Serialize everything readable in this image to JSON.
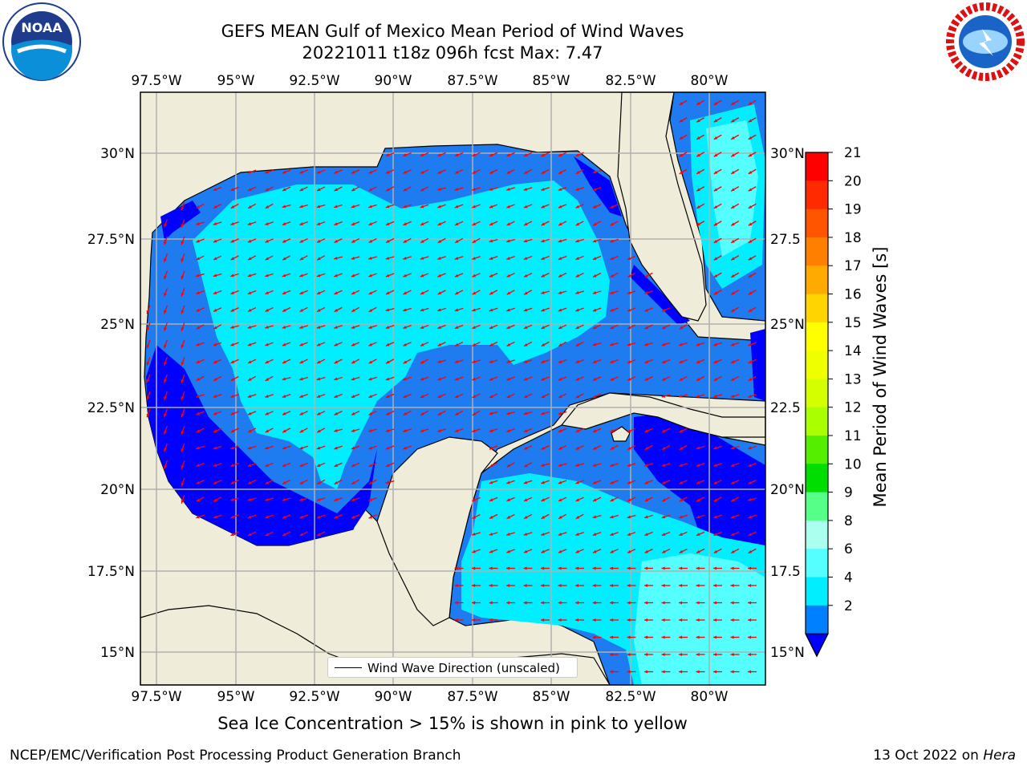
{
  "title_line1": "GEFS MEAN Gulf of Mexico Mean Period of Wind Waves",
  "title_line2": "20221011 t18z 096h fcst   Max: 7.47",
  "logos": {
    "left_logo": "noaa-logo",
    "left_text": "NOAA",
    "right_logo": "nws-logo"
  },
  "axes": {
    "lon_labels": [
      "97.5°W",
      "95°W",
      "92.5°W",
      "90°W",
      "87.5°W",
      "85°W",
      "82.5°W",
      "80°W"
    ],
    "lat_labels_left": [
      "30°N",
      "27.5°N",
      "25°N",
      "22.5°N",
      "20°N",
      "17.5°N",
      "15°N"
    ],
    "lat_labels_right": [
      "30°N",
      "27.5",
      "25°N",
      "22.5",
      "20°N",
      "17.5",
      "15°N"
    ]
  },
  "colorbar": {
    "title": "Mean Period of Wind Waves [s]",
    "ticks": [
      "21",
      "20",
      "19",
      "18",
      "17",
      "16",
      "15",
      "14",
      "13",
      "12",
      "11",
      "10",
      "9",
      "8",
      "6",
      "4",
      "2"
    ],
    "colors": [
      "#ff0000",
      "#ff2a00",
      "#ff5500",
      "#ff7f00",
      "#ffaa00",
      "#ffd400",
      "#ffff00",
      "#f0ff00",
      "#d4ff00",
      "#aaff00",
      "#55ee00",
      "#00dd00",
      "#55ff88",
      "#aaffee",
      "#55ffff",
      "#00eeff",
      "#0080ff"
    ],
    "extend_color": "#0000ff"
  },
  "field_colors": {
    "land": "#efedda",
    "ocean_low": "#0000ff",
    "ocean_mid": "#1e7cf0",
    "ocean_high": "#00eeff",
    "ocean_peak": "#55ffff",
    "arrow": "#ff0000"
  },
  "legend": {
    "label": "Wind Wave Direction (unscaled)"
  },
  "note": "Sea Ice Concentration > 15% is shown in pink to yellow",
  "footer_left": "NCEP/EMC/Verification Post Processing Product Generation Branch",
  "footer_right_date": "13 Oct 2022 on ",
  "footer_right_host": "Hera"
}
